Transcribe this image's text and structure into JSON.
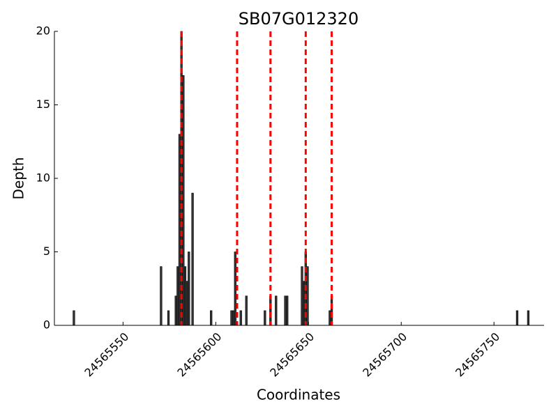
{
  "chart_data": {
    "type": "bar",
    "title": "SB07G012320",
    "xlabel": "Coordinates",
    "ylabel": "Depth",
    "x": [
      24565523,
      24565570,
      24565574,
      24565578,
      24565579,
      24565580,
      24565581,
      24565582,
      24565583,
      24565584,
      24565585,
      24565587,
      24565597,
      24565608,
      24565609,
      24565610,
      24565613,
      24565616,
      24565626,
      24565629,
      24565632,
      24565637,
      24565638,
      24565646,
      24565647,
      24565648,
      24565649,
      24565661,
      24565662,
      24565762,
      24565768
    ],
    "values": [
      1,
      4,
      1,
      2,
      4,
      13,
      20,
      17,
      4,
      3,
      5,
      9,
      1,
      1,
      1,
      5,
      1,
      2,
      1,
      2,
      2,
      2,
      2,
      4,
      3,
      5,
      4,
      1,
      2,
      1,
      1
    ],
    "color": "#333333",
    "vlines": {
      "x": [
        24565581,
        24565611,
        24565629,
        24565648,
        24565662
      ],
      "color": "#ff0000"
    },
    "xlim": [
      24565513,
      24565777
    ],
    "xticks": [
      24565550,
      24565600,
      24565650,
      24565700,
      24565750
    ],
    "ylim": [
      0,
      20
    ],
    "yticks": [
      0,
      5,
      10,
      15,
      20
    ]
  }
}
